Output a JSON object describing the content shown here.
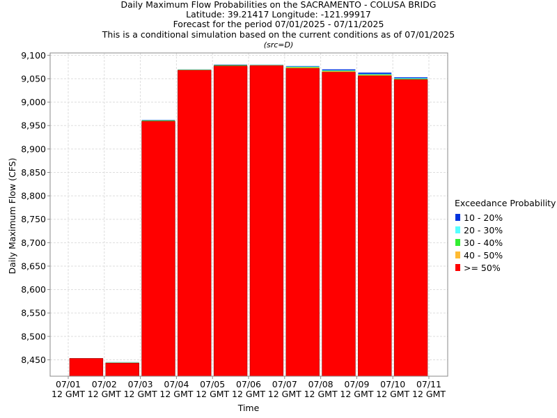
{
  "chart_data": {
    "type": "bar",
    "title_lines": [
      "Daily Maximum Flow Probabilities on the SACRAMENTO - COLUSA BRIDG",
      "Latitude: 39.21417 Longitude: -121.99917",
      "Forecast for the period 07/01/2025 - 07/11/2025",
      "This is a conditional simulation based on the current conditions as of 07/01/2025"
    ],
    "subtitle": "(src=D)",
    "xlabel": "Time",
    "ylabel": "Daily Maximum Flow (CFS)",
    "ylim": [
      8415,
      9105
    ],
    "yticks": [
      8450,
      8500,
      8550,
      8600,
      8650,
      8700,
      8750,
      8800,
      8850,
      8900,
      8950,
      9000,
      9050,
      9100
    ],
    "ytick_labels": [
      "8,450",
      "8,500",
      "8,550",
      "8,600",
      "8,650",
      "8,700",
      "8,750",
      "8,800",
      "8,850",
      "8,900",
      "8,950",
      "9,000",
      "9,050",
      "9,100"
    ],
    "xtick_labels": [
      [
        "07/01",
        "12 GMT"
      ],
      [
        "07/02",
        "12 GMT"
      ],
      [
        "07/03",
        "12 GMT"
      ],
      [
        "07/04",
        "12 GMT"
      ],
      [
        "07/05",
        "12 GMT"
      ],
      [
        "07/06",
        "12 GMT"
      ],
      [
        "07/07",
        "12 GMT"
      ],
      [
        "07/08",
        "12 GMT"
      ],
      [
        "07/09",
        "12 GMT"
      ],
      [
        "07/10",
        "12 GMT"
      ],
      [
        "07/11",
        "12 GMT"
      ]
    ],
    "legend_title": "Exceedance Probability",
    "legend_position": "right",
    "grid": true,
    "series": [
      {
        "name": "10 - 20%",
        "color": "#0033dd",
        "values": [
          8453,
          8445,
          8962,
          9070,
          9080,
          9080,
          9077,
          9070,
          9063,
          9053
        ]
      },
      {
        "name": "20 - 30%",
        "color": "#55ffff",
        "values": [
          8453,
          8445,
          8961,
          9070,
          9079,
          9080,
          9076,
          9068,
          9060,
          9051
        ]
      },
      {
        "name": "30 - 40%",
        "color": "#33ee33",
        "values": [
          8453,
          8444,
          8961,
          9069,
          9079,
          9079,
          9075,
          9067,
          9059,
          9050
        ]
      },
      {
        "name": "40 - 50%",
        "color": "#ffbb33",
        "values": [
          8453,
          8444,
          8960,
          9069,
          9078,
          9079,
          9074,
          9066,
          9058,
          9049
        ]
      },
      {
        "name": ">= 50%",
        "color": "#ff0000",
        "values": [
          8453,
          8443,
          8959,
          9068,
          9077,
          9078,
          9072,
          9064,
          9056,
          9048
        ]
      }
    ]
  }
}
